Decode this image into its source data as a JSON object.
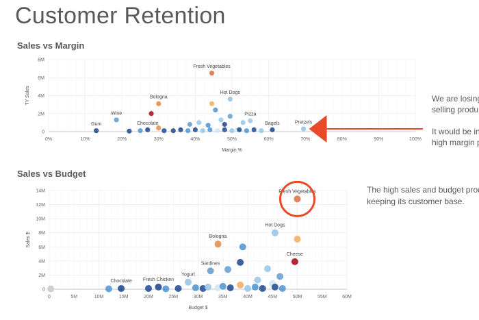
{
  "page": {
    "title": "Customer Retention"
  },
  "chart_data": [
    {
      "type": "scatter",
      "title": "Sales vs Margin",
      "xlabel": "Margin %",
      "ylabel": "TY Sales",
      "xlim": [
        0,
        100
      ],
      "ylim": [
        0,
        8
      ],
      "x_ticks": [
        "0%",
        "10%",
        "20%",
        "30%",
        "40%",
        "50%",
        "60%",
        "70%",
        "80%",
        "90%",
        "100%"
      ],
      "y_ticks": [
        "0",
        "2M",
        "4M",
        "6M",
        "8M"
      ],
      "grid": true,
      "labeled_points": [
        {
          "label": "Fresh Vegetables",
          "x": 44.5,
          "y": 6.5,
          "color": "#e07b4f"
        },
        {
          "label": "Hot Dogs",
          "x": 49.5,
          "y": 3.6,
          "color": "#9ec9e8"
        },
        {
          "label": "Bologna",
          "x": 30,
          "y": 3.1,
          "color": "#e8925a"
        },
        {
          "label": "Wine",
          "x": 18.5,
          "y": 1.3,
          "color": "#6fa3d2"
        },
        {
          "label": "Pizza",
          "x": 55,
          "y": 1.2,
          "color": "#a9cbe8"
        },
        {
          "label": "Chocolate",
          "x": 27,
          "y": 0.2,
          "color": "#2f5597"
        },
        {
          "label": "Gum",
          "x": 13,
          "y": 0.1,
          "color": "#2f5597"
        },
        {
          "label": "Bagels",
          "x": 61,
          "y": 0.2,
          "color": "#2f5597"
        },
        {
          "label": "Pretzels",
          "x": 69.5,
          "y": 0.3,
          "color": "#9ec9e8"
        }
      ],
      "other_points": [
        {
          "x": 28,
          "y": 2.0,
          "color": "#b2182b"
        },
        {
          "x": 44.5,
          "y": 3.1,
          "color": "#f4b36b"
        },
        {
          "x": 45.5,
          "y": 2.4,
          "color": "#5b9bd5"
        },
        {
          "x": 47,
          "y": 1.3,
          "color": "#9ec9e8"
        },
        {
          "x": 48,
          "y": 0.8,
          "color": "#2f5597"
        },
        {
          "x": 49.5,
          "y": 1.7,
          "color": "#6fa3d2"
        },
        {
          "x": 38.5,
          "y": 0.8,
          "color": "#6fa3d2"
        },
        {
          "x": 41,
          "y": 1.0,
          "color": "#9ec9e8"
        },
        {
          "x": 43.5,
          "y": 0.7,
          "color": "#5b9bd5"
        },
        {
          "x": 53,
          "y": 1.0,
          "color": "#9ec9e8"
        },
        {
          "x": 51.5,
          "y": 0.2,
          "color": "#d5e6f4"
        },
        {
          "x": 30,
          "y": 0.4,
          "color": "#e8925a"
        },
        {
          "x": 31.5,
          "y": 0.1,
          "color": "#2f5597"
        },
        {
          "x": 34,
          "y": 0.1,
          "color": "#2f5597"
        },
        {
          "x": 36,
          "y": 0.2,
          "color": "#2f5597"
        },
        {
          "x": 38,
          "y": 0.1,
          "color": "#5b9bd5"
        },
        {
          "x": 40,
          "y": 0.2,
          "color": "#2f5597"
        },
        {
          "x": 42,
          "y": 0.1,
          "color": "#9ec9e8"
        },
        {
          "x": 44,
          "y": 0.2,
          "color": "#5b9bd5"
        },
        {
          "x": 46,
          "y": 0.1,
          "color": "#d5e6f4"
        },
        {
          "x": 48,
          "y": 0.2,
          "color": "#2f5597"
        },
        {
          "x": 50,
          "y": 0.1,
          "color": "#9ec9e8"
        },
        {
          "x": 52,
          "y": 0.2,
          "color": "#2f5597"
        },
        {
          "x": 54,
          "y": 0.1,
          "color": "#5b9bd5"
        },
        {
          "x": 56,
          "y": 0.2,
          "color": "#2f5597"
        },
        {
          "x": 58,
          "y": 0.1,
          "color": "#9ec9e8"
        },
        {
          "x": 22,
          "y": 0.05,
          "color": "#2f5597"
        },
        {
          "x": 25,
          "y": 0.1,
          "color": "#5b9bd5"
        }
      ]
    },
    {
      "type": "scatter",
      "title": "Sales vs Budget",
      "xlabel": "Budget $",
      "ylabel": "Sales $",
      "xlim": [
        0,
        60
      ],
      "ylim": [
        0,
        14
      ],
      "x_ticks": [
        "0",
        "5M",
        "10M",
        "15M",
        "20M",
        "25M",
        "30M",
        "35M",
        "40M",
        "45M",
        "50M",
        "55M",
        "60M"
      ],
      "y_ticks": [
        "0",
        "2M",
        "4M",
        "6M",
        "8M",
        "10M",
        "12M",
        "14M"
      ],
      "grid": true,
      "labeled_points": [
        {
          "label": "Fresh Vegetables",
          "x": 50,
          "y": 12.8,
          "color": "#e07b4f"
        },
        {
          "label": "Hot Dogs",
          "x": 45.5,
          "y": 8.0,
          "color": "#9ec9e8"
        },
        {
          "label": "Bologna",
          "x": 34,
          "y": 6.4,
          "color": "#e8925a"
        },
        {
          "label": "Cheese",
          "x": 49.5,
          "y": 3.9,
          "color": "#b2182b"
        },
        {
          "label": "Sardines",
          "x": 32.5,
          "y": 2.6,
          "color": "#6fa3d2"
        },
        {
          "label": "Yogurt",
          "x": 28,
          "y": 1.0,
          "color": "#9ec9e8"
        },
        {
          "label": "Fresh Chicken",
          "x": 22,
          "y": 0.3,
          "color": "#2f5597"
        },
        {
          "label": "Chocolate",
          "x": 14.5,
          "y": 0.1,
          "color": "#2f5597"
        }
      ],
      "other_points": [
        {
          "x": 50,
          "y": 7.1,
          "color": "#f4b36b"
        },
        {
          "x": 39,
          "y": 6.0,
          "color": "#5b9bd5"
        },
        {
          "x": 38.5,
          "y": 3.8,
          "color": "#2f5597"
        },
        {
          "x": 36,
          "y": 2.8,
          "color": "#6fa3d2"
        },
        {
          "x": 44,
          "y": 2.9,
          "color": "#9ec9e8"
        },
        {
          "x": 46.5,
          "y": 1.8,
          "color": "#6fa3d2"
        },
        {
          "x": 38.5,
          "y": 0.6,
          "color": "#f4b36b"
        },
        {
          "x": 42,
          "y": 1.3,
          "color": "#9ec9e8"
        },
        {
          "x": 45,
          "y": 0.8,
          "color": "#d5e6f4"
        },
        {
          "x": 45.5,
          "y": 0.3,
          "color": "#2f5597"
        },
        {
          "x": 47,
          "y": 0.1,
          "color": "#5b9bd5"
        },
        {
          "x": 12,
          "y": 0.05,
          "color": "#5b9bd5"
        },
        {
          "x": 20,
          "y": 0.1,
          "color": "#2f5597"
        },
        {
          "x": 23.5,
          "y": 0.05,
          "color": "#5b9bd5"
        },
        {
          "x": 26,
          "y": 0.1,
          "color": "#2f5597"
        },
        {
          "x": 29.5,
          "y": 0.2,
          "color": "#5b9bd5"
        },
        {
          "x": 31,
          "y": 0.1,
          "color": "#2f5597"
        },
        {
          "x": 32,
          "y": 0.3,
          "color": "#9ec9e8"
        },
        {
          "x": 34,
          "y": 0.2,
          "color": "#d5e6f4"
        },
        {
          "x": 35,
          "y": 0.4,
          "color": "#5b9bd5"
        },
        {
          "x": 36.5,
          "y": 0.2,
          "color": "#2f5597"
        },
        {
          "x": 40,
          "y": 0.1,
          "color": "#9ec9e8"
        },
        {
          "x": 41.5,
          "y": 0.3,
          "color": "#5b9bd5"
        },
        {
          "x": 43,
          "y": 0.1,
          "color": "#2f5597"
        },
        {
          "x": 0.3,
          "y": 0.05,
          "color": "#cccccc"
        }
      ]
    }
  ],
  "notes": {
    "n1_line1": "We are losing",
    "n1_line2": "selling produ",
    "n1_line3": "It would be in",
    "n1_line4": "high margin p",
    "n2_line1": "The high sales and budget produ",
    "n2_line2": "keeping its customer base."
  },
  "colors": {
    "annotation": "#e84a27",
    "grid": "#e6e6e6",
    "text": "#595959"
  }
}
